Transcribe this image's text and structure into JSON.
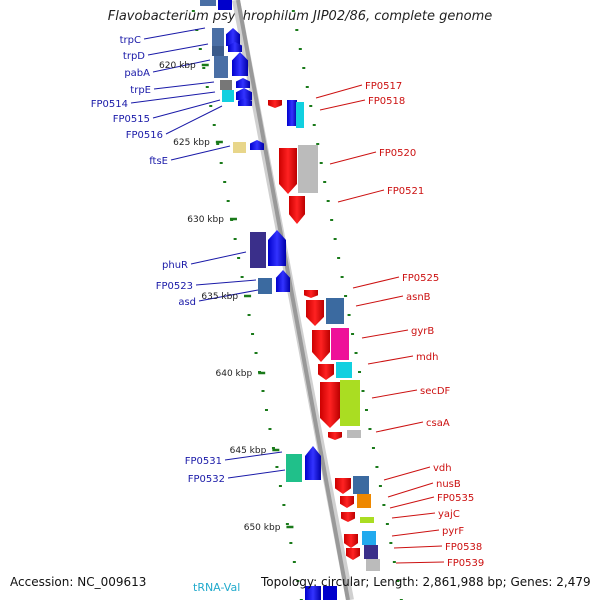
{
  "title": "Flavobacterium psychrophilum JIP02/86, complete genome",
  "footer": {
    "accession": "Accession: NC_009613",
    "info": "Topology: circular; Length: 2,861,988 bp; Genes: 2,479",
    "partial_label": "tRNA-Val"
  },
  "colors": {
    "left_label": "#1a1aa8",
    "right_label": "#cc1111",
    "tick": "#1a7a1a",
    "backbone": "#999999"
  },
  "ruler": [
    "620 kbp",
    "625 kbp",
    "630 kbp",
    "635 kbp",
    "640 kbp",
    "645 kbp",
    "650 kbp"
  ],
  "left_genes": [
    "trpC",
    "trpD",
    "pabA",
    "trpE",
    "FP0514",
    "FP0515",
    "FP0516",
    "ftsE",
    "phuR",
    "FP0523",
    "asd",
    "FP0531",
    "FP0532"
  ],
  "right_genes": [
    "FP0517",
    "FP0518",
    "FP0520",
    "FP0521",
    "FP0525",
    "asnB",
    "gyrB",
    "mdh",
    "secDF",
    "csaA",
    "vdh",
    "nusB",
    "FP0535",
    "yajC",
    "pyrF",
    "FP0538",
    "FP0539"
  ]
}
